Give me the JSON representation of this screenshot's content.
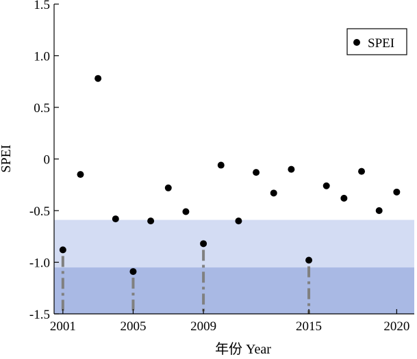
{
  "chart_data": {
    "type": "scatter",
    "xlabel": "年份 Year",
    "ylabel": "SPEI",
    "xlim": [
      2000.5,
      2021.0
    ],
    "ylim": [
      -1.5,
      1.5
    ],
    "x_ticks": [
      2001,
      2005,
      2009,
      2015,
      2020
    ],
    "x_tick_labels": [
      "2001",
      "2005",
      "2009",
      "2015",
      "2020"
    ],
    "y_ticks": [
      -1.5,
      -1.0,
      -0.5,
      0,
      0.5,
      1.0,
      1.5
    ],
    "y_tick_labels": [
      "-1.5",
      "-1.0",
      "-0.5",
      "0",
      "0.5",
      "1.0",
      "1.5"
    ],
    "grid": false,
    "legend": {
      "position": "top-right",
      "entries": [
        "SPEI"
      ]
    },
    "bands": [
      {
        "from": -1.5,
        "to": -1.05,
        "color": "#a9b9e4"
      },
      {
        "from": -1.05,
        "to": -0.59,
        "color": "#d3dcf3"
      }
    ],
    "series": [
      {
        "name": "SPEI",
        "color": "#000000",
        "x": [
          2001,
          2002,
          2003,
          2004,
          2005,
          2006,
          2007,
          2008,
          2009,
          2010,
          2011,
          2012,
          2013,
          2014,
          2015,
          2016,
          2017,
          2018,
          2019,
          2020
        ],
        "y": [
          -0.88,
          -0.15,
          0.78,
          -0.58,
          -1.09,
          -0.6,
          -0.28,
          -0.51,
          -0.82,
          -0.06,
          -0.6,
          -0.13,
          -0.33,
          -0.1,
          -0.98,
          -0.26,
          -0.38,
          -0.12,
          -0.5,
          -0.32
        ]
      }
    ],
    "drop_lines": {
      "color": "#808080",
      "style": "dash-dot",
      "x": [
        2001,
        2005,
        2009,
        2015
      ]
    }
  }
}
